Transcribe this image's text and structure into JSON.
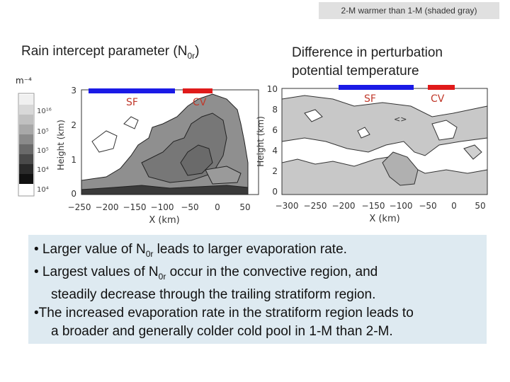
{
  "note": "2-M warmer than 1-M (shaded gray)",
  "left_panel": {
    "title_main": "Rain intercept parameter (N",
    "title_sub": "0r",
    "title_end": ")",
    "unit": "m⁻⁴",
    "colorbar_labels": [
      "10¹⁶",
      "10⁵",
      "10⁵",
      "10⁴",
      "10⁴"
    ],
    "ylabel": "Height (km)",
    "yticks": [
      "3",
      "2",
      "1",
      "0"
    ],
    "xticks": [
      "−250",
      "−200",
      "−150",
      "−100",
      "−50",
      "0",
      "50"
    ],
    "xlabel": "X (km)",
    "region_sf": "SF",
    "region_cv": "CV"
  },
  "right_panel": {
    "title_line1": "Difference in perturbation",
    "title_line2": "potential temperature",
    "ylabel": "Height (km)",
    "yticks": [
      "10",
      "8",
      "6",
      "4",
      "2",
      "0"
    ],
    "xticks": [
      "−300",
      "−250",
      "−200",
      "−150",
      "−100",
      "−50",
      "0",
      "50"
    ],
    "xlabel": "X (km)",
    "region_sf": "SF",
    "region_cv": "CV"
  },
  "colors": {
    "sf_bar": "#1a1ae6",
    "cv_bar": "#e01a1a",
    "region_label": "#c0392b",
    "bullet_bg": "#deeaf1"
  },
  "bullets": {
    "b1_pre": "• Larger value of N",
    "b1_sub": "0r",
    "b1_post": " leads to larger evaporation rate.",
    "b2_pre": "• Largest values of N",
    "b2_sub": "0r",
    "b2_post": " occur in the convective region, and",
    "b2_cont": "steadily decrease through the trailing stratiform region.",
    "b3": "•The increased evaporation rate in the stratiform region leads to",
    "b3_cont": "a broader and generally colder cold pool in 1-M than 2-M."
  }
}
